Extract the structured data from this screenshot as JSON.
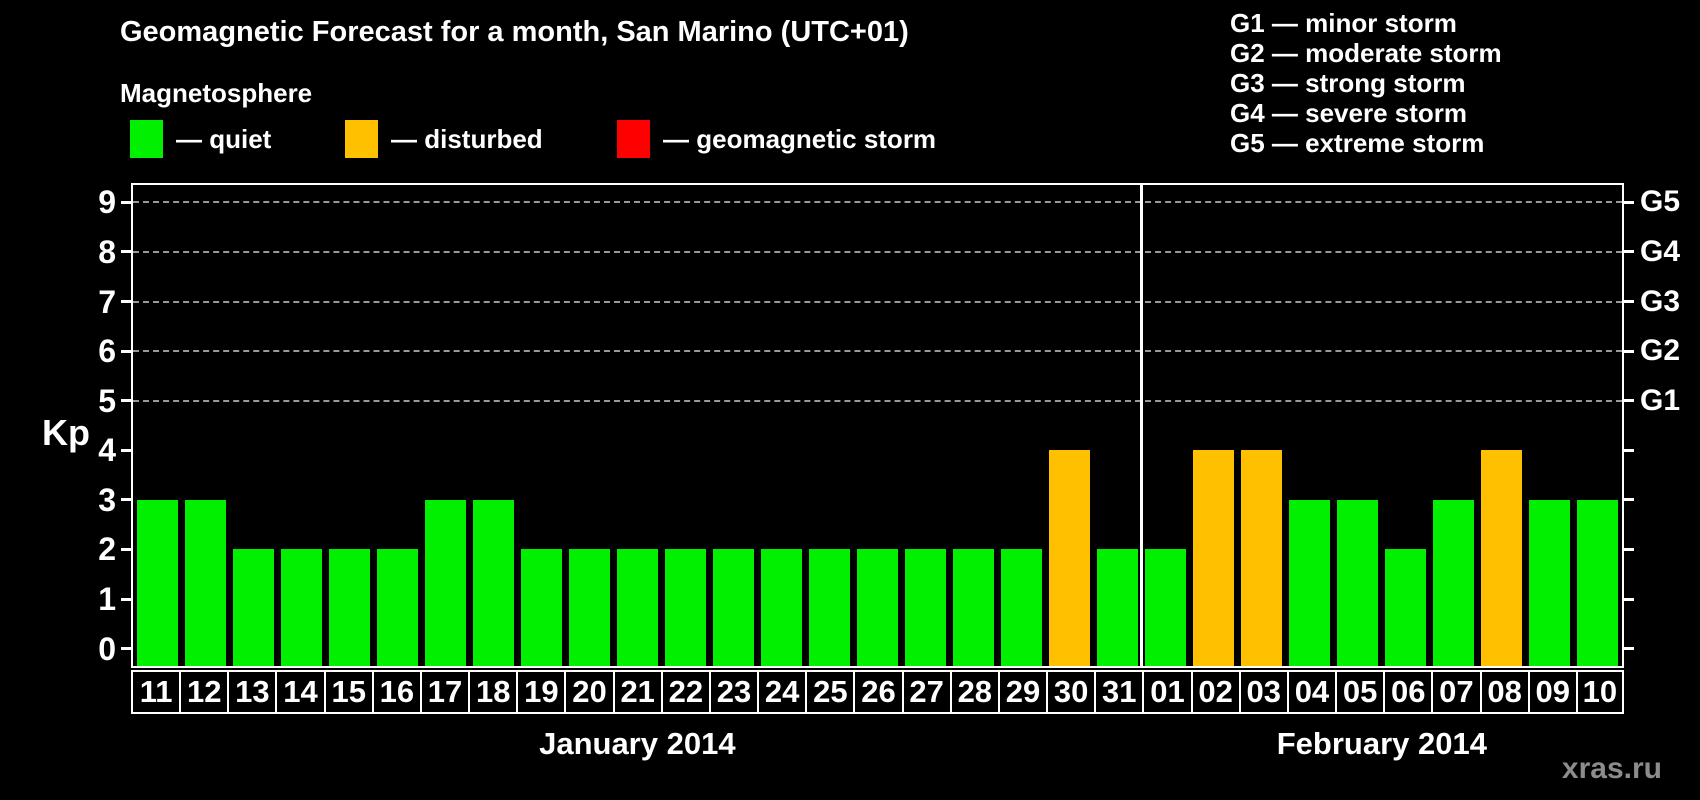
{
  "legend_title": "Magnetosphere",
  "legend": [
    {
      "key": "quiet",
      "label": "— quiet",
      "color": "#00f000"
    },
    {
      "key": "disturbed",
      "label": "— disturbed",
      "color": "#ffc000"
    },
    {
      "key": "storm",
      "label": "— geomagnetic storm",
      "color": "#ff0000"
    }
  ],
  "g_scale": [
    "G1 — minor storm",
    "G2 — moderate storm",
    "G3 — strong storm",
    "G4 — severe storm",
    "G5 — extreme storm"
  ],
  "watermark": "xras.ru",
  "chart_data": {
    "type": "bar",
    "title": "Geomagnetic Forecast for a month, San Marino (UTC+01)",
    "ylabel": "Kp",
    "ylim": [
      0,
      9
    ],
    "yticks": [
      0,
      1,
      2,
      3,
      4,
      5,
      6,
      7,
      8,
      9
    ],
    "gridlines_kp": [
      5,
      6,
      7,
      8,
      9
    ],
    "right_axis": [
      {
        "kp": 5,
        "label": "G1"
      },
      {
        "kp": 6,
        "label": "G2"
      },
      {
        "kp": 7,
        "label": "G3"
      },
      {
        "kp": 8,
        "label": "G4"
      },
      {
        "kp": 9,
        "label": "G5"
      }
    ],
    "months": [
      {
        "name": "January 2014",
        "days": 21
      },
      {
        "name": "February 2014",
        "days": 10
      }
    ],
    "categories": [
      "11",
      "12",
      "13",
      "14",
      "15",
      "16",
      "17",
      "18",
      "19",
      "20",
      "21",
      "22",
      "23",
      "24",
      "25",
      "26",
      "27",
      "28",
      "29",
      "30",
      "31",
      "01",
      "02",
      "03",
      "04",
      "05",
      "06",
      "07",
      "08",
      "09",
      "10"
    ],
    "values": [
      3,
      3,
      2,
      2,
      2,
      2,
      3,
      3,
      2,
      2,
      2,
      2,
      2,
      2,
      2,
      2,
      2,
      2,
      2,
      4,
      2,
      2,
      4,
      4,
      3,
      3,
      2,
      3,
      4,
      3,
      3
    ],
    "statuses": [
      "quiet",
      "quiet",
      "quiet",
      "quiet",
      "quiet",
      "quiet",
      "quiet",
      "quiet",
      "quiet",
      "quiet",
      "quiet",
      "quiet",
      "quiet",
      "quiet",
      "quiet",
      "quiet",
      "quiet",
      "quiet",
      "quiet",
      "disturbed",
      "quiet",
      "quiet",
      "disturbed",
      "disturbed",
      "quiet",
      "quiet",
      "quiet",
      "quiet",
      "disturbed",
      "quiet",
      "quiet"
    ],
    "status_colors": {
      "quiet": "#00f000",
      "disturbed": "#ffc000",
      "storm": "#ff0000"
    }
  }
}
